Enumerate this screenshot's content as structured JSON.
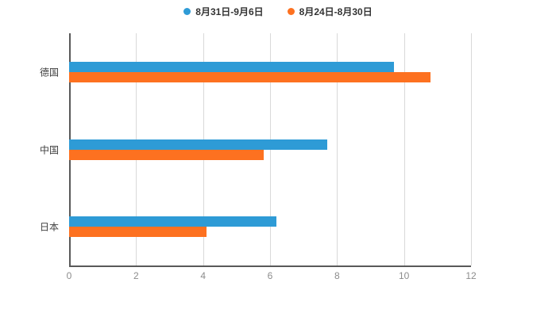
{
  "chart_data": {
    "type": "bar",
    "orientation": "horizontal",
    "title": "",
    "categories": [
      "德国",
      "中国",
      "日本"
    ],
    "series": [
      {
        "name": "8月31日-9月6日",
        "color": "#2e9bd6",
        "values": [
          9.7,
          7.7,
          6.2
        ]
      },
      {
        "name": "8月24日-8月30日",
        "color": "#fd7120",
        "values": [
          10.8,
          5.8,
          4.1
        ]
      }
    ],
    "xlabel": "",
    "ylabel": "",
    "xlim": [
      0,
      12
    ],
    "xticks": [
      0,
      2,
      4,
      6,
      8,
      10,
      12
    ],
    "grid": true,
    "legend_position": "top",
    "colors": {
      "grid": "#d9d9d9",
      "axis": "#595959",
      "tick_label": "#8c8c8c",
      "category_label": "#404040",
      "legend_text": "#333333",
      "background": "#ffffff"
    }
  }
}
